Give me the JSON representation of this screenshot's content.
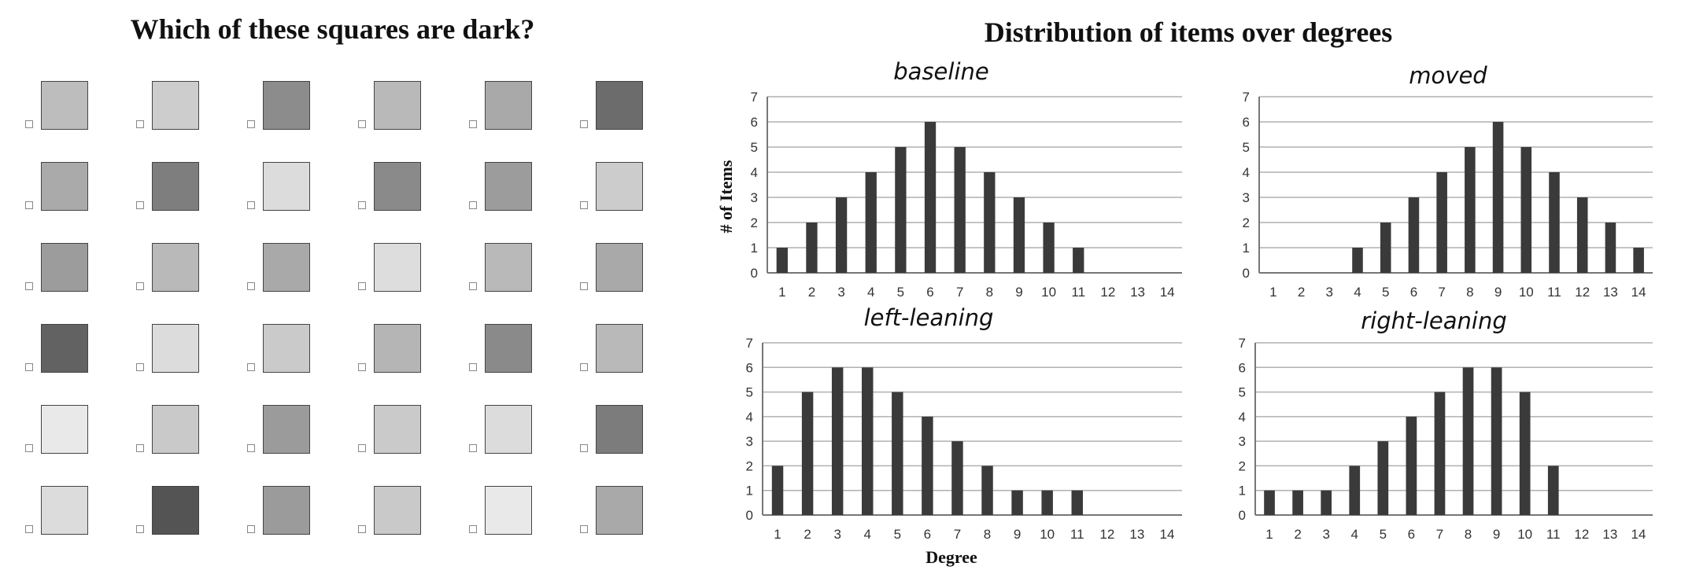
{
  "squares_panel": {
    "title": "Which of these squares are dark?",
    "rows": [
      [
        "#bdbdbd",
        "#cdcdcd",
        "#8c8c8c",
        "#b9b9b9",
        "#a9a9a9",
        "#6c6c6c"
      ],
      [
        "#aaaaaa",
        "#7e7e7e",
        "#dcdcdc",
        "#8a8a8a",
        "#9c9c9c",
        "#cccccc"
      ],
      [
        "#9c9c9c",
        "#b9b9b9",
        "#a9a9a9",
        "#dddddd",
        "#b9b9b9",
        "#a9a9a9"
      ],
      [
        "#626262",
        "#dcdcdc",
        "#cacaca",
        "#b5b5b5",
        "#8a8a8a",
        "#b9b9b9"
      ],
      [
        "#e9e9e9",
        "#c9c9c9",
        "#9b9b9b",
        "#cacaca",
        "#dcdcdc",
        "#7c7c7c"
      ],
      [
        "#dcdcdc",
        "#545454",
        "#9b9b9b",
        "#c9c9c9",
        "#e9e9e9",
        "#a9a9a9"
      ]
    ]
  },
  "chart_section": {
    "title": "Distribution of items over degrees",
    "ylabel": "# of Items",
    "xlabel": "Degree"
  },
  "chart_data": [
    {
      "type": "bar",
      "title": "baseline",
      "categories": [
        "1",
        "2",
        "3",
        "4",
        "5",
        "6",
        "7",
        "8",
        "9",
        "10",
        "11",
        "12",
        "13",
        "14"
      ],
      "values": [
        1,
        2,
        3,
        4,
        5,
        6,
        5,
        4,
        3,
        2,
        1,
        0,
        0,
        0
      ],
      "ylim": [
        0,
        7
      ],
      "yticks": [
        "0",
        "1",
        "2",
        "3",
        "4",
        "5",
        "6",
        "7"
      ],
      "grid": true,
      "bar_color": "#3a3a3a"
    },
    {
      "type": "bar",
      "title": "moved",
      "categories": [
        "1",
        "2",
        "3",
        "4",
        "5",
        "6",
        "7",
        "8",
        "9",
        "10",
        "11",
        "12",
        "13",
        "14"
      ],
      "values": [
        0,
        0,
        0,
        1,
        2,
        3,
        4,
        5,
        6,
        5,
        4,
        3,
        2,
        1
      ],
      "ylim": [
        0,
        7
      ],
      "yticks": [
        "0",
        "1",
        "2",
        "3",
        "4",
        "5",
        "6",
        "7"
      ],
      "grid": true,
      "bar_color": "#3a3a3a"
    },
    {
      "type": "bar",
      "title": "left-leaning",
      "categories": [
        "1",
        "2",
        "3",
        "4",
        "5",
        "6",
        "7",
        "8",
        "9",
        "10",
        "11",
        "12",
        "13",
        "14"
      ],
      "values": [
        2,
        5,
        6,
        6,
        5,
        4,
        3,
        2,
        1,
        1,
        1,
        0,
        0,
        0
      ],
      "ylim": [
        0,
        7
      ],
      "yticks": [
        "0",
        "1",
        "2",
        "3",
        "4",
        "5",
        "6",
        "7"
      ],
      "grid": true,
      "bar_color": "#3a3a3a"
    },
    {
      "type": "bar",
      "title": "right-leaning",
      "categories": [
        "1",
        "2",
        "3",
        "4",
        "5",
        "6",
        "7",
        "8",
        "9",
        "10",
        "11",
        "12",
        "13",
        "14"
      ],
      "values": [
        1,
        1,
        1,
        2,
        3,
        4,
        5,
        6,
        6,
        5,
        2,
        0,
        0,
        0
      ],
      "ylim": [
        0,
        7
      ],
      "yticks": [
        "0",
        "1",
        "2",
        "3",
        "4",
        "5",
        "6",
        "7"
      ],
      "grid": true,
      "bar_color": "#3a3a3a"
    }
  ]
}
